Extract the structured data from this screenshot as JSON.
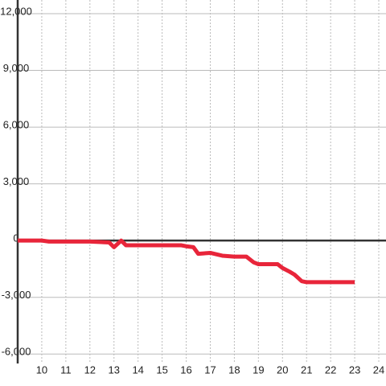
{
  "chart_data": {
    "type": "line",
    "x": [
      9,
      10,
      10.3,
      12,
      12.8,
      13,
      13.3,
      13.5,
      15,
      15.8,
      16,
      16.3,
      16.5,
      17,
      17.5,
      18,
      18.5,
      18.8,
      19,
      19.8,
      20,
      20.3,
      20.5,
      20.8,
      21,
      22,
      23
    ],
    "series": [
      {
        "color": "#e8253a",
        "values": [
          0,
          0,
          -50,
          -50,
          -100,
          -350,
          0,
          -250,
          -250,
          -250,
          -300,
          -350,
          -700,
          -650,
          -800,
          -850,
          -850,
          -1150,
          -1250,
          -1250,
          -1450,
          -1650,
          -1800,
          -2150,
          -2200,
          -2200,
          -2200
        ]
      }
    ],
    "xlim": [
      9,
      24.3
    ],
    "xticks": [
      10,
      11,
      12,
      13,
      14,
      15,
      16,
      17,
      18,
      19,
      20,
      21,
      22,
      23,
      24
    ],
    "ylim": [
      -6500,
      12000
    ],
    "yticks": [
      {
        "value": -6000,
        "label": "-6,000"
      },
      {
        "value": -3000,
        "label": "-3,000"
      },
      0,
      {
        "value": 3000,
        "label": "3,000"
      },
      {
        "value": 6000,
        "label": "6,000"
      },
      {
        "value": 9000,
        "label": "9,000"
      },
      {
        "value": 12000,
        "label": "12,000"
      }
    ],
    "grid": true
  }
}
